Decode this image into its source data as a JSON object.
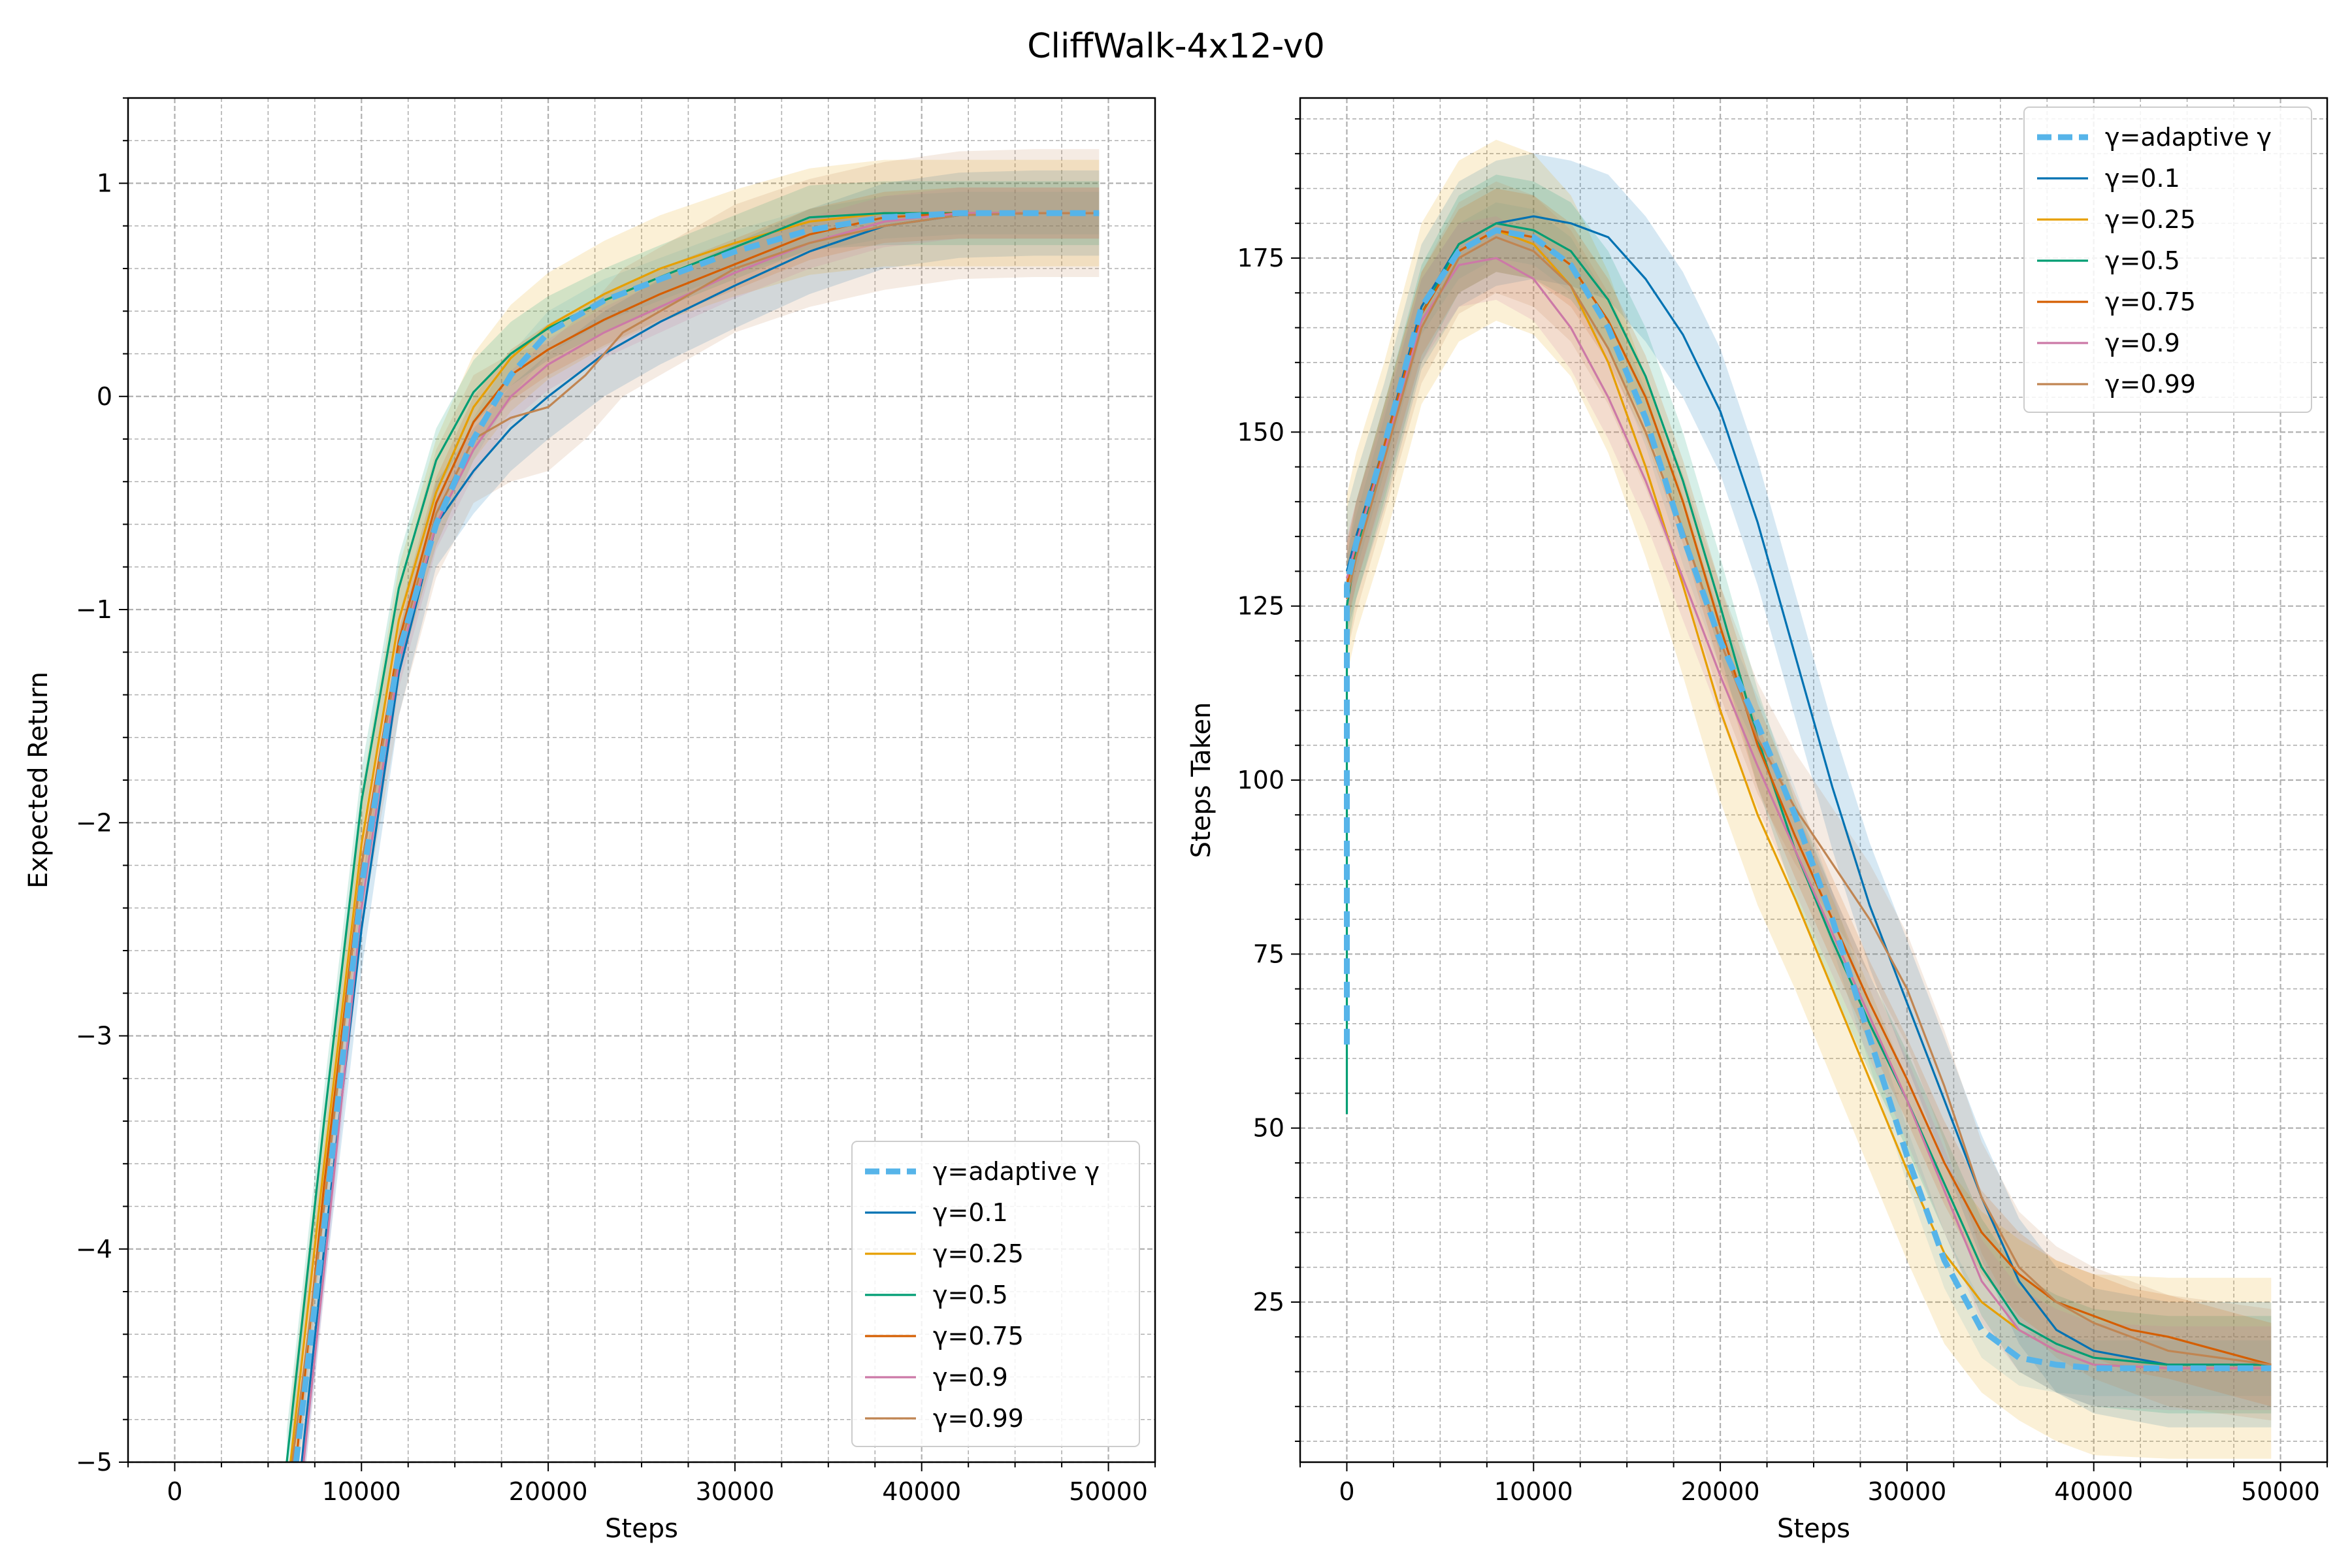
{
  "figure": {
    "title": "CliffWalk-4x12-v0"
  },
  "styles": {
    "colors": {
      "adaptive": "#56B4E9",
      "g0.1": "#0072B2",
      "g0.25": "#E69F00",
      "g0.5": "#009E73",
      "g0.75": "#D55E00",
      "g0.9": "#CC79A7",
      "g0.99": "#C08552"
    },
    "grid": "on (major and minor, dashed)"
  },
  "chart_data": [
    {
      "type": "line",
      "title": "",
      "xlabel": "Steps",
      "ylabel": "Expected Return",
      "xlim": [
        -2500,
        52500
      ],
      "ylim": [
        -5,
        1.4
      ],
      "xticks": [
        0,
        10000,
        20000,
        30000,
        40000,
        50000
      ],
      "yticks": [
        -5,
        -4,
        -3,
        -2,
        -1,
        0,
        1
      ],
      "ytick_labels": [
        "−5",
        "−4",
        "−3",
        "−2",
        "−1",
        "0",
        "1"
      ],
      "legend_position": "lower-right",
      "series": [
        {
          "name": "γ=adaptive γ",
          "key": "adaptive",
          "dashed": true,
          "x": [
            6500,
            8000,
            10000,
            12000,
            14000,
            16000,
            18000,
            20000,
            23000,
            26000,
            30000,
            34000,
            38000,
            42000,
            46000,
            49500
          ],
          "y": [
            -5,
            -3.9,
            -2.3,
            -1.2,
            -0.6,
            -0.2,
            0.1,
            0.3,
            0.45,
            0.55,
            0.68,
            0.78,
            0.84,
            0.86,
            0.86,
            0.86
          ],
          "band_width": 0.1
        },
        {
          "name": "γ=0.1",
          "key": "g0.1",
          "x": [
            6800,
            8000,
            10000,
            12000,
            14000,
            16000,
            18000,
            20000,
            23000,
            26000,
            30000,
            34000,
            38000,
            42000,
            46000,
            49500
          ],
          "y": [
            -5,
            -4.0,
            -2.5,
            -1.3,
            -0.6,
            -0.35,
            -0.15,
            0.0,
            0.2,
            0.35,
            0.52,
            0.68,
            0.8,
            0.85,
            0.86,
            0.86
          ],
          "band_width": 0.2
        },
        {
          "name": "γ=0.25",
          "key": "g0.25",
          "x": [
            6200,
            8000,
            10000,
            12000,
            14000,
            16000,
            18000,
            20000,
            23000,
            26000,
            30000,
            34000,
            38000,
            42000,
            46000,
            49500
          ],
          "y": [
            -5,
            -3.6,
            -2.1,
            -1.05,
            -0.45,
            -0.05,
            0.18,
            0.33,
            0.48,
            0.6,
            0.72,
            0.82,
            0.86,
            0.86,
            0.86,
            0.86
          ],
          "band_width": 0.25
        },
        {
          "name": "γ=0.5",
          "key": "g0.5",
          "x": [
            6000,
            8000,
            10000,
            12000,
            14000,
            16000,
            18000,
            20000,
            23000,
            26000,
            30000,
            34000,
            38000,
            42000,
            46000,
            49500
          ],
          "y": [
            -5,
            -3.4,
            -1.9,
            -0.9,
            -0.3,
            0.02,
            0.2,
            0.32,
            0.45,
            0.56,
            0.7,
            0.84,
            0.86,
            0.86,
            0.86,
            0.86
          ],
          "band_width": 0.15
        },
        {
          "name": "γ=0.75",
          "key": "g0.75",
          "x": [
            6500,
            8000,
            10000,
            12000,
            14000,
            16000,
            18000,
            20000,
            23000,
            26000,
            30000,
            34000,
            38000,
            42000,
            46000,
            49500
          ],
          "y": [
            -5,
            -3.7,
            -2.2,
            -1.15,
            -0.5,
            -0.12,
            0.1,
            0.22,
            0.36,
            0.48,
            0.62,
            0.76,
            0.84,
            0.86,
            0.86,
            0.86
          ],
          "band_width": 0.12
        },
        {
          "name": "γ=0.9",
          "key": "g0.9",
          "x": [
            6900,
            8000,
            10000,
            12000,
            14000,
            16000,
            18000,
            20000,
            23000,
            26000,
            30000,
            34000,
            38000,
            42000,
            46000,
            49500
          ],
          "y": [
            -5,
            -4.1,
            -2.4,
            -1.25,
            -0.6,
            -0.25,
            0.0,
            0.15,
            0.3,
            0.42,
            0.58,
            0.72,
            0.82,
            0.86,
            0.86,
            0.86
          ],
          "band_width": 0.12
        },
        {
          "name": "γ=0.99",
          "key": "g0.99",
          "x": [
            6300,
            8000,
            10000,
            12000,
            14000,
            16000,
            18000,
            20000,
            22000,
            24000,
            27000,
            30000,
            34000,
            38000,
            42000,
            46000,
            49500
          ],
          "y": [
            -5,
            -3.8,
            -2.2,
            -1.2,
            -0.55,
            -0.2,
            -0.1,
            -0.05,
            0.1,
            0.3,
            0.45,
            0.6,
            0.72,
            0.8,
            0.85,
            0.86,
            0.86
          ],
          "band_width": 0.3
        }
      ]
    },
    {
      "type": "line",
      "title": "",
      "xlabel": "Steps",
      "ylabel": "Steps Taken",
      "xlim": [
        -2500,
        52500
      ],
      "ylim": [
        2,
        198
      ],
      "xticks": [
        0,
        10000,
        20000,
        30000,
        40000,
        50000
      ],
      "yticks": [
        25,
        50,
        75,
        100,
        125,
        150,
        175
      ],
      "legend_position": "upper-right",
      "series": [
        {
          "name": "γ=adaptive γ",
          "key": "adaptive",
          "dashed": true,
          "x": [
            0,
            0,
            500,
            2000,
            4000,
            6000,
            8000,
            10000,
            12000,
            14000,
            16000,
            18000,
            20000,
            22000,
            24000,
            26000,
            28000,
            30000,
            32000,
            34000,
            36000,
            38000,
            40000,
            44000,
            49500
          ],
          "y": [
            62,
            128,
            134,
            148,
            168,
            176,
            179,
            178,
            174,
            165,
            152,
            135,
            120,
            108,
            95,
            80,
            63,
            46,
            31,
            21,
            17,
            16,
            15.5,
            15.5,
            15.5
          ],
          "band_width": 4
        },
        {
          "name": "γ=0.1",
          "key": "g0.1",
          "x": [
            0,
            500,
            2000,
            4000,
            6000,
            8000,
            10000,
            12000,
            14000,
            16000,
            18000,
            20000,
            22000,
            24000,
            26000,
            28000,
            30000,
            32000,
            34000,
            36000,
            38000,
            40000,
            44000,
            49500
          ],
          "y": [
            130,
            135,
            148,
            168,
            177,
            180,
            181,
            180,
            178,
            172,
            164,
            153,
            137,
            118,
            99,
            82,
            68,
            54,
            40,
            28,
            21,
            18,
            16,
            16
          ],
          "band_width": 9
        },
        {
          "name": "γ=0.25",
          "key": "g0.25",
          "x": [
            0,
            500,
            2000,
            4000,
            6000,
            8000,
            10000,
            12000,
            14000,
            16000,
            18000,
            20000,
            22000,
            24000,
            26000,
            28000,
            30000,
            32000,
            34000,
            36000,
            38000,
            40000,
            44000,
            49500
          ],
          "y": [
            128,
            134,
            147,
            167,
            176,
            179,
            177,
            171,
            160,
            145,
            128,
            110,
            95,
            83,
            70,
            57,
            44,
            32,
            25,
            21,
            18,
            16,
            15.5,
            15.5
          ],
          "band_width": 13
        },
        {
          "name": "γ=0.5",
          "key": "g0.5",
          "x": [
            0,
            0,
            500,
            2000,
            4000,
            6000,
            8000,
            10000,
            12000,
            14000,
            16000,
            18000,
            20000,
            22000,
            24000,
            26000,
            28000,
            30000,
            32000,
            34000,
            36000,
            38000,
            40000,
            44000,
            49500
          ],
          "y": [
            52,
            125,
            133,
            147,
            167,
            177,
            180,
            179,
            176,
            169,
            158,
            143,
            125,
            106,
            90,
            77,
            65,
            54,
            42,
            30,
            22,
            19,
            17,
            16,
            16
          ],
          "band_width": 7
        },
        {
          "name": "γ=0.75",
          "key": "g0.75",
          "x": [
            0,
            500,
            2000,
            4000,
            6000,
            8000,
            10000,
            12000,
            14000,
            16000,
            18000,
            20000,
            22000,
            24000,
            26000,
            28000,
            30000,
            32000,
            34000,
            36000,
            38000,
            40000,
            42000,
            44000,
            49500
          ],
          "y": [
            128,
            134,
            148,
            167,
            176,
            179,
            178,
            174,
            166,
            155,
            140,
            122,
            105,
            92,
            80,
            68,
            57,
            45,
            35,
            29,
            25,
            23,
            21,
            20,
            16
          ],
          "band_width": 6
        },
        {
          "name": "γ=0.9",
          "key": "g0.9",
          "x": [
            0,
            500,
            2000,
            4000,
            6000,
            8000,
            10000,
            12000,
            14000,
            16000,
            18000,
            20000,
            22000,
            24000,
            26000,
            28000,
            30000,
            32000,
            34000,
            36000,
            38000,
            40000,
            44000,
            49500
          ],
          "y": [
            129,
            134,
            147,
            166,
            174,
            175,
            172,
            165,
            155,
            143,
            129,
            115,
            102,
            90,
            78,
            66,
            54,
            41,
            28,
            21,
            18,
            16,
            15.5,
            15.5
          ],
          "band_width": 6
        },
        {
          "name": "γ=0.99",
          "key": "g0.99",
          "x": [
            0,
            500,
            2000,
            4000,
            6000,
            8000,
            10000,
            12000,
            14000,
            16000,
            18000,
            20000,
            22000,
            24000,
            26000,
            28000,
            30000,
            32000,
            34000,
            36000,
            38000,
            40000,
            44000,
            49500
          ],
          "y": [
            126,
            132,
            146,
            165,
            175,
            178,
            176,
            171,
            162,
            150,
            136,
            120,
            106,
            96,
            88,
            80,
            70,
            56,
            40,
            30,
            25,
            22,
            18,
            16
          ],
          "band_width": 8
        }
      ]
    }
  ]
}
